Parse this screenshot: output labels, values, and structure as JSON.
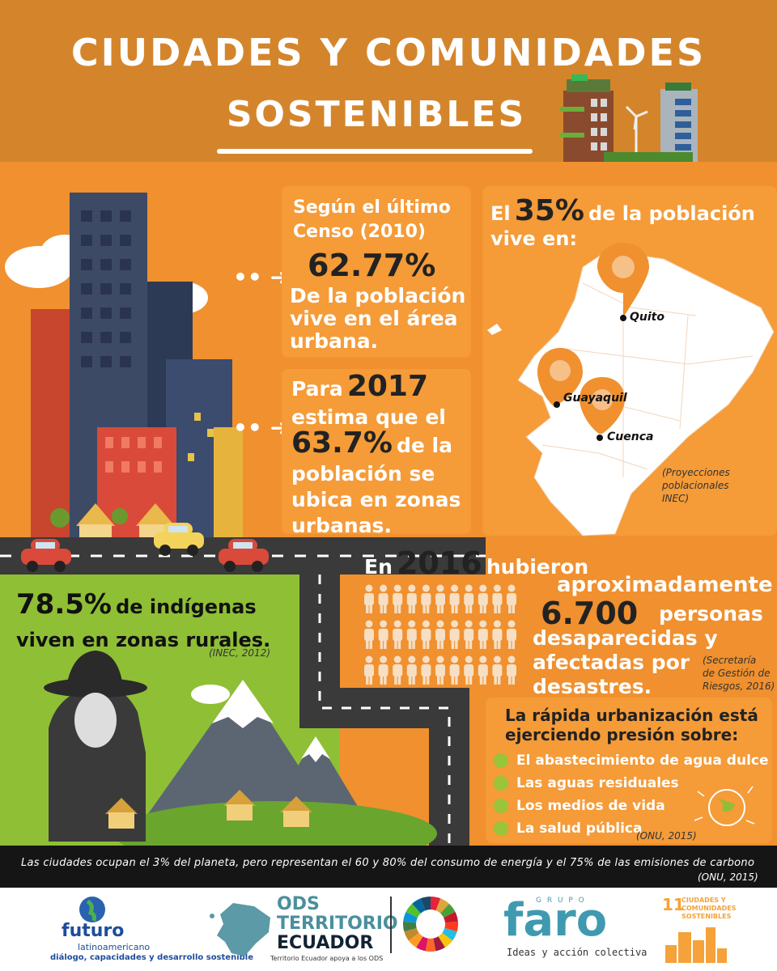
{
  "header": {
    "title_line1": "CIUDADES Y COMUNIDADES",
    "title_line2": "SOSTENIBLES"
  },
  "census": {
    "line1": "Según el último",
    "line2": "Censo (2010)",
    "percent": "62.77%",
    "desc1": "De la población",
    "desc2": "vive en el área",
    "desc3": "urbana."
  },
  "projection": {
    "prefix": "Para",
    "year": "2017",
    "line2": "estima que el",
    "percent": "63.7%",
    "line3_suffix": "de la",
    "line4": "población se",
    "line5": "ubica en zonas",
    "line6": "urbanas."
  },
  "map_panel": {
    "prefix": "El",
    "percent": "35%",
    "suffix": "de la población",
    "line2": "vive en:",
    "cities": [
      "Quito",
      "Guayaquil",
      "Cuenca"
    ],
    "source1": "(Proyecciones",
    "source2": "poblacionales",
    "source3": "INEC)"
  },
  "indigenous": {
    "percent": "78.5%",
    "text1": "de indígenas",
    "text2": "viven en zonas rurales.",
    "source": "(INEC, 2012)"
  },
  "disasters": {
    "prefix": "En",
    "year": "2016",
    "suffix": "hubieron",
    "line2": "aproximadamente",
    "number": "6.700",
    "line3_suffix": "personas",
    "line4": "desaparecidas y",
    "line5": "afectadas por",
    "line6": "desastres.",
    "source1": "(Secretaría",
    "source2": "de Gestión de",
    "source3": "Riesgos, 2016)"
  },
  "pressure": {
    "title1": "La rápida urbanización está",
    "title2": "ejerciendo presión sobre:",
    "items": [
      "El abastecimiento de agua dulce",
      "Las aguas residuales",
      "Los medios de vida",
      "La salud pública"
    ],
    "source": "(ONU, 2015)"
  },
  "bottom_bar": {
    "text": "Las ciudades ocupan el 3% del planeta, pero representan el 60 y 80% del consumo de energía y el 75% de las emisiones de carbono",
    "source": "(ONU, 2015)"
  },
  "footer": {
    "futuro_name": "futuro",
    "futuro_sub": "latinoamericano",
    "futuro_tag": "diálogo, capacidades y desarrollo sostenible",
    "ods_line1": "ODS",
    "ods_line2": "TERRITORIO",
    "ods_line3": "ECUADOR",
    "ods_tag": "Territorio Ecuador apoya a los ODS",
    "faro_grupo": "G R U P O",
    "faro_name": "faro",
    "faro_tag": "Ideas y acción colectiva",
    "sdg_number": "11",
    "sdg_line1": "CIUDADES Y",
    "sdg_line2": "COMUNIDADES",
    "sdg_line3": "SOSTENIBLES"
  },
  "colors": {
    "header_bg": "#d4852b",
    "panel_bg": "#f59b38",
    "page_bg": "#f0902e",
    "green": "#8fbf35",
    "dark": "#151515"
  }
}
